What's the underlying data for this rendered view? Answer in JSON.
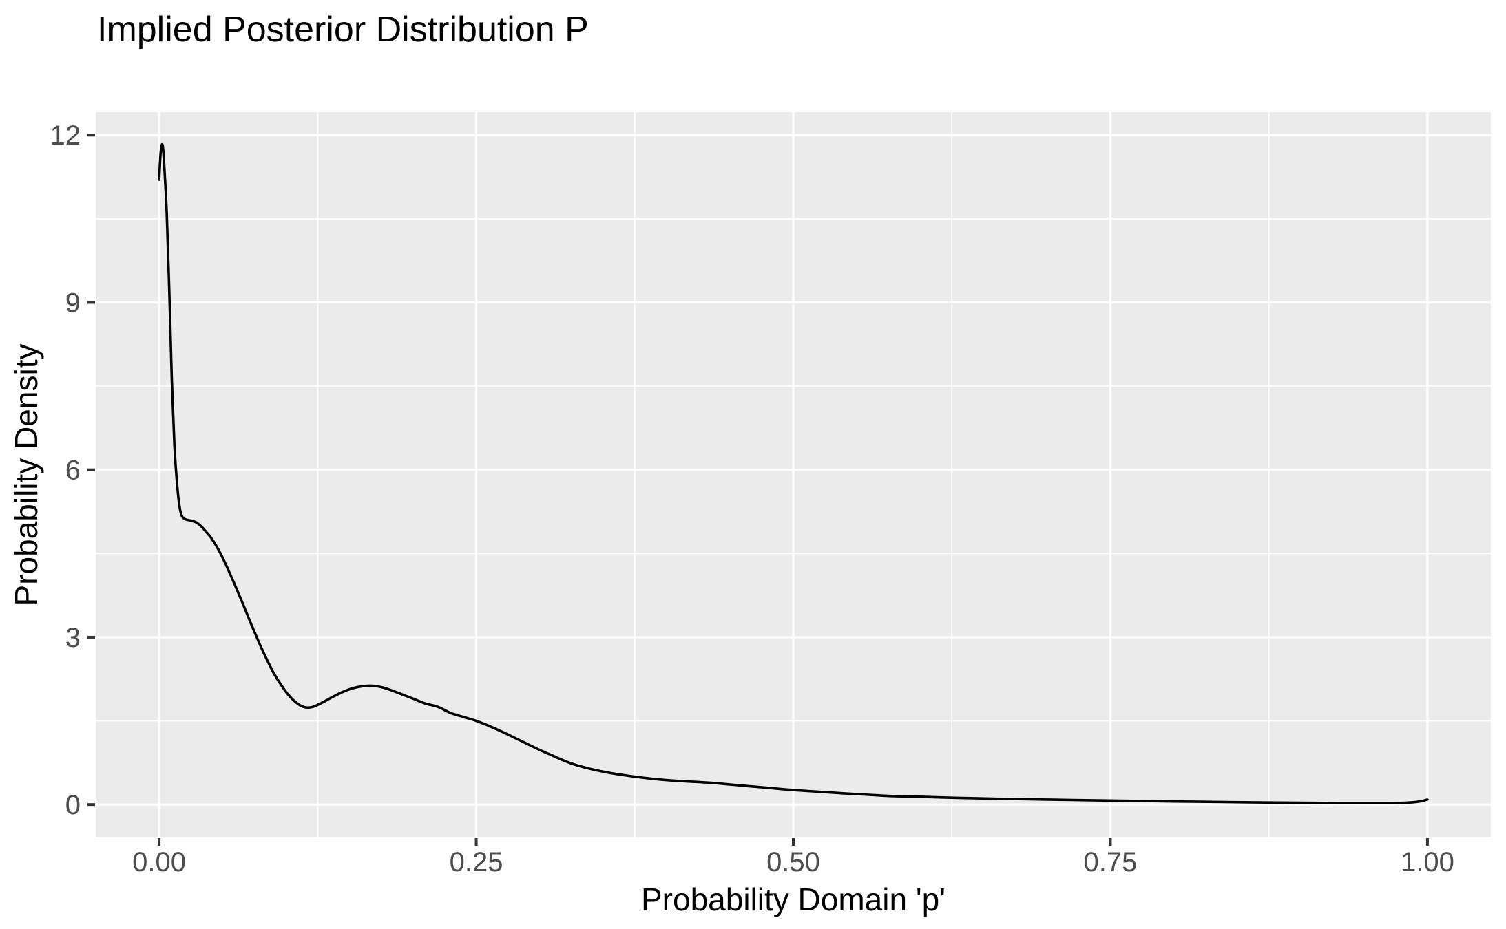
{
  "page": {
    "background_color": "#FFFFFF"
  },
  "chart_data": {
    "type": "line",
    "subtype": "density-curve",
    "title": "Implied Posterior Distribution P",
    "xlabel": "Probability Domain 'p'",
    "ylabel": "Probability Density",
    "legend": "none",
    "grid": "major+minor",
    "xlim": [
      -0.05,
      1.05
    ],
    "ylim": [
      -0.59,
      12.41
    ],
    "x_ticks": {
      "values": [
        0,
        0.25,
        0.5,
        0.75,
        1.0
      ],
      "labels": [
        "0.00",
        "0.25",
        "0.50",
        "0.75",
        "1.00"
      ]
    },
    "y_ticks": {
      "values": [
        0,
        3,
        6,
        9,
        12
      ],
      "labels": [
        "0",
        "3",
        "6",
        "9",
        "12"
      ]
    },
    "x_minor_ticks": [
      0.125,
      0.375,
      0.625,
      0.875
    ],
    "y_minor_ticks": [
      1.5,
      4.5,
      7.5,
      10.5
    ],
    "style": {
      "panel_background": "#EBEBEB",
      "grid_color": "#FFFFFF",
      "tick_mark_color": "#333333",
      "tick_label_color": "#4D4D4D",
      "title_color": "#000000",
      "curve_color": "#000000"
    },
    "series": [
      {
        "name": "posterior-density",
        "color": "#000000",
        "points": [
          [
            0.0,
            11.2
          ],
          [
            0.001,
            11.62
          ],
          [
            0.002,
            11.82
          ],
          [
            0.003,
            11.78
          ],
          [
            0.004,
            11.45
          ],
          [
            0.006,
            10.6
          ],
          [
            0.008,
            9.2
          ],
          [
            0.01,
            7.6
          ],
          [
            0.012,
            6.45
          ],
          [
            0.014,
            5.78
          ],
          [
            0.016,
            5.35
          ],
          [
            0.018,
            5.17
          ],
          [
            0.021,
            5.11
          ],
          [
            0.025,
            5.09
          ],
          [
            0.029,
            5.06
          ],
          [
            0.033,
            4.99
          ],
          [
            0.037,
            4.89
          ],
          [
            0.041,
            4.78
          ],
          [
            0.046,
            4.6
          ],
          [
            0.051,
            4.38
          ],
          [
            0.056,
            4.13
          ],
          [
            0.061,
            3.87
          ],
          [
            0.066,
            3.6
          ],
          [
            0.071,
            3.32
          ],
          [
            0.076,
            3.05
          ],
          [
            0.081,
            2.79
          ],
          [
            0.086,
            2.55
          ],
          [
            0.091,
            2.33
          ],
          [
            0.096,
            2.15
          ],
          [
            0.101,
            1.99
          ],
          [
            0.106,
            1.87
          ],
          [
            0.111,
            1.78
          ],
          [
            0.116,
            1.74
          ],
          [
            0.121,
            1.75
          ],
          [
            0.128,
            1.82
          ],
          [
            0.136,
            1.92
          ],
          [
            0.144,
            2.01
          ],
          [
            0.152,
            2.08
          ],
          [
            0.16,
            2.12
          ],
          [
            0.168,
            2.13
          ],
          [
            0.176,
            2.1
          ],
          [
            0.184,
            2.04
          ],
          [
            0.192,
            1.97
          ],
          [
            0.2,
            1.9
          ],
          [
            0.21,
            1.81
          ],
          [
            0.22,
            1.75
          ],
          [
            0.23,
            1.64
          ],
          [
            0.24,
            1.57
          ],
          [
            0.25,
            1.5
          ],
          [
            0.26,
            1.41
          ],
          [
            0.27,
            1.31
          ],
          [
            0.28,
            1.2
          ],
          [
            0.29,
            1.09
          ],
          [
            0.3,
            0.98
          ],
          [
            0.31,
            0.88
          ],
          [
            0.32,
            0.78
          ],
          [
            0.33,
            0.7
          ],
          [
            0.34,
            0.64
          ],
          [
            0.35,
            0.59
          ],
          [
            0.36,
            0.55
          ],
          [
            0.375,
            0.5
          ],
          [
            0.39,
            0.46
          ],
          [
            0.405,
            0.43
          ],
          [
            0.42,
            0.41
          ],
          [
            0.435,
            0.39
          ],
          [
            0.45,
            0.36
          ],
          [
            0.465,
            0.33
          ],
          [
            0.48,
            0.3
          ],
          [
            0.5,
            0.26
          ],
          [
            0.52,
            0.23
          ],
          [
            0.54,
            0.2
          ],
          [
            0.56,
            0.175
          ],
          [
            0.58,
            0.15
          ],
          [
            0.6,
            0.14
          ],
          [
            0.63,
            0.12
          ],
          [
            0.66,
            0.105
          ],
          [
            0.7,
            0.09
          ],
          [
            0.74,
            0.075
          ],
          [
            0.78,
            0.062
          ],
          [
            0.82,
            0.05
          ],
          [
            0.86,
            0.04
          ],
          [
            0.9,
            0.032
          ],
          [
            0.93,
            0.027
          ],
          [
            0.955,
            0.025
          ],
          [
            0.975,
            0.028
          ],
          [
            0.988,
            0.04
          ],
          [
            0.995,
            0.06
          ],
          [
            1.0,
            0.09
          ]
        ]
      }
    ]
  }
}
